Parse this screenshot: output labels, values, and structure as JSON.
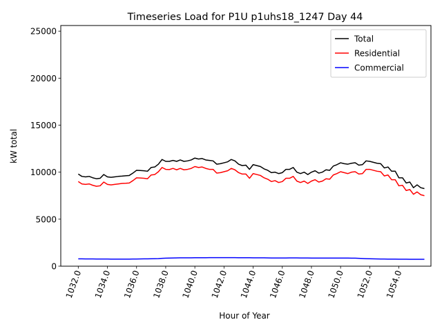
{
  "chart_data": {
    "type": "line",
    "title": "Timeseries Load for P1U p1uhs18_1247  Day 44",
    "xlabel": "Hour of Year",
    "ylabel": "kW total",
    "xlim": [
      1030.8,
      1056.2
    ],
    "ylim": [
      0,
      25600
    ],
    "xticks": [
      1032,
      1034,
      1036,
      1038,
      1040,
      1042,
      1044,
      1046,
      1048,
      1050,
      1052,
      1054
    ],
    "xtick_labels": [
      "1032.0",
      "1034.0",
      "1036.0",
      "1038.0",
      "1040.0",
      "1042.0",
      "1044.0",
      "1046.0",
      "1048.0",
      "1050.0",
      "1052.0",
      "1054.0"
    ],
    "yticks": [
      0,
      5000,
      10000,
      15000,
      20000,
      25000
    ],
    "ytick_labels": [
      "0",
      "5000",
      "10000",
      "15000",
      "20000",
      "25000"
    ],
    "legend_position": "top-right",
    "x_start": 1032,
    "x_step": 0.25,
    "series": [
      {
        "name": "Total",
        "color": "#000000",
        "values": [
          9800,
          9550,
          9500,
          9550,
          9400,
          9300,
          9350,
          9750,
          9500,
          9450,
          9500,
          9550,
          9580,
          9620,
          9650,
          9900,
          10200,
          10180,
          10150,
          10100,
          10500,
          10550,
          10850,
          11350,
          11150,
          11150,
          11250,
          11150,
          11300,
          11150,
          11200,
          11300,
          11500,
          11400,
          11450,
          11300,
          11250,
          11200,
          10850,
          10900,
          11000,
          11100,
          11350,
          11200,
          10850,
          10700,
          10750,
          10300,
          10800,
          10700,
          10600,
          10350,
          10200,
          9950,
          10000,
          9850,
          9950,
          10300,
          10300,
          10500,
          10000,
          9850,
          10000,
          9750,
          10000,
          10150,
          9900,
          10000,
          10250,
          10200,
          10650,
          10800,
          11000,
          10900,
          10850,
          10950,
          11000,
          10750,
          10800,
          11200,
          11150,
          11050,
          10950,
          10900,
          10450,
          10550,
          10100,
          10100,
          9400,
          9400,
          8850,
          8950,
          8350,
          8650,
          8350,
          8250
        ]
      },
      {
        "name": "Residential",
        "color": "#ff0000",
        "values": [
          9000,
          8750,
          8700,
          8750,
          8600,
          8500,
          8550,
          8950,
          8700,
          8650,
          8700,
          8750,
          8800,
          8820,
          8850,
          9100,
          9400,
          9380,
          9350,
          9300,
          9700,
          9750,
          10050,
          10500,
          10300,
          10280,
          10400,
          10250,
          10400,
          10250,
          10300,
          10400,
          10600,
          10500,
          10550,
          10400,
          10300,
          10300,
          9900,
          9950,
          10050,
          10150,
          10400,
          10250,
          9950,
          9800,
          9800,
          9350,
          9850,
          9750,
          9650,
          9400,
          9250,
          9000,
          9100,
          8900,
          9000,
          9350,
          9350,
          9550,
          9050,
          8900,
          9050,
          8800,
          9050,
          9200,
          8950,
          9050,
          9300,
          9250,
          9700,
          9850,
          10050,
          9950,
          9850,
          10000,
          10050,
          9800,
          9850,
          10300,
          10300,
          10200,
          10100,
          10050,
          9600,
          9700,
          9200,
          9200,
          8550,
          8600,
          8050,
          8150,
          7650,
          7900,
          7600,
          7500
        ]
      },
      {
        "name": "Commercial",
        "color": "#0000ff",
        "values": [
          780,
          775,
          770,
          770,
          768,
          765,
          762,
          760,
          758,
          755,
          752,
          750,
          750,
          752,
          755,
          760,
          765,
          770,
          775,
          780,
          790,
          800,
          810,
          830,
          850,
          860,
          870,
          878,
          885,
          890,
          890,
          892,
          895,
          898,
          900,
          902,
          905,
          905,
          908,
          908,
          910,
          910,
          908,
          905,
          902,
          900,
          898,
          895,
          892,
          890,
          888,
          885,
          880,
          875,
          872,
          870,
          872,
          875,
          878,
          880,
          878,
          875,
          872,
          870,
          865,
          862,
          860,
          860,
          862,
          862,
          862,
          862,
          860,
          860,
          858,
          855,
          850,
          830,
          815,
          800,
          790,
          780,
          772,
          765,
          760,
          755,
          750,
          748,
          745,
          742,
          740,
          738,
          735,
          735,
          733,
          730
        ]
      }
    ]
  }
}
